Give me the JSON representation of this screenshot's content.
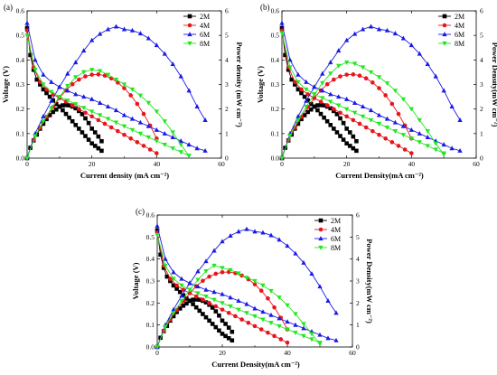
{
  "colors": {
    "2M": "#000000",
    "4M": "#e8151b",
    "6M": "#1a1ae6",
    "8M": "#22e61f"
  },
  "markers": {
    "2M": "square",
    "4M": "circle",
    "6M": "triangle-up",
    "8M": "triangle-down"
  },
  "chart_data": [
    {
      "type": "line",
      "panel": "(a)",
      "xlabel": "Current density",
      "xlabel_unit": "(mA cm⁻²)",
      "ylabel_left": "Voltage (V)",
      "ylabel_right": "Power density (mW cm⁻²)",
      "xlim": [
        0,
        60
      ],
      "xticks": [
        0,
        20,
        40,
        60
      ],
      "ylim_left": [
        0,
        0.6
      ],
      "yticks_left": [
        0.0,
        0.1,
        0.2,
        0.3,
        0.4,
        0.5,
        0.6
      ],
      "ylim_right": [
        0,
        6
      ],
      "yticks_right": [
        0,
        1,
        2,
        3,
        4,
        5,
        6
      ],
      "legend_position": "top-right",
      "series": [
        {
          "name": "2M",
          "x": [
            0,
            1,
            2,
            3,
            4,
            5,
            6,
            7,
            8,
            9,
            10,
            11,
            12,
            13,
            14,
            15,
            16,
            17,
            18,
            19,
            20,
            21,
            22,
            23
          ],
          "voltage": [
            0.53,
            0.42,
            0.36,
            0.32,
            0.3,
            0.28,
            0.265,
            0.25,
            0.235,
            0.22,
            0.21,
            0.195,
            0.18,
            0.165,
            0.15,
            0.135,
            0.12,
            0.105,
            0.09,
            0.075,
            0.06,
            0.05,
            0.04,
            0.03
          ],
          "power": [
            0,
            0.42,
            0.72,
            0.96,
            1.2,
            1.4,
            1.59,
            1.75,
            1.88,
            1.98,
            2.1,
            2.15,
            2.16,
            2.15,
            2.1,
            2.03,
            1.92,
            1.79,
            1.62,
            1.43,
            1.2,
            1.05,
            0.88,
            0.69
          ]
        },
        {
          "name": "4M",
          "x": [
            0,
            2,
            4,
            6,
            8,
            10,
            12,
            14,
            16,
            18,
            20,
            22,
            24,
            26,
            28,
            30,
            32,
            34,
            36,
            38,
            40
          ],
          "voltage": [
            0.52,
            0.37,
            0.31,
            0.28,
            0.26,
            0.245,
            0.23,
            0.215,
            0.2,
            0.185,
            0.17,
            0.155,
            0.14,
            0.125,
            0.11,
            0.095,
            0.08,
            0.065,
            0.05,
            0.035,
            0.02
          ],
          "power": [
            0,
            0.74,
            1.24,
            1.68,
            2.08,
            2.45,
            2.76,
            3.01,
            3.2,
            3.33,
            3.4,
            3.41,
            3.36,
            3.25,
            3.08,
            2.85,
            2.56,
            2.21,
            1.8,
            1.33,
            0.8
          ]
        },
        {
          "name": "6M",
          "x": [
            0,
            2.5,
            5,
            7.5,
            10,
            12.5,
            15,
            17.5,
            20,
            22.5,
            25,
            27.5,
            30,
            32.5,
            35,
            37.5,
            40,
            42.5,
            45,
            47.5,
            50,
            52.5,
            55
          ],
          "voltage": [
            0.55,
            0.4,
            0.34,
            0.31,
            0.29,
            0.275,
            0.26,
            0.25,
            0.24,
            0.225,
            0.21,
            0.195,
            0.175,
            0.16,
            0.145,
            0.13,
            0.115,
            0.1,
            0.085,
            0.07,
            0.055,
            0.04,
            0.03
          ],
          "power": [
            0,
            1.0,
            1.7,
            2.33,
            2.9,
            3.44,
            3.9,
            4.38,
            4.8,
            5.06,
            5.25,
            5.36,
            5.25,
            5.2,
            5.08,
            4.88,
            4.6,
            4.25,
            3.83,
            3.33,
            2.75,
            2.1,
            1.55
          ]
        },
        {
          "name": "8M",
          "x": [
            0,
            2.5,
            5,
            7.5,
            10,
            12.5,
            15,
            17.5,
            20,
            22.5,
            25,
            27.5,
            30,
            32.5,
            35,
            37.5,
            40,
            42.5,
            45,
            47.5,
            50
          ],
          "voltage": [
            0.5,
            0.36,
            0.3,
            0.27,
            0.25,
            0.235,
            0.22,
            0.205,
            0.19,
            0.175,
            0.16,
            0.145,
            0.13,
            0.115,
            0.1,
            0.085,
            0.07,
            0.055,
            0.04,
            0.025,
            0.01
          ],
          "power": [
            0,
            0.9,
            1.5,
            2.03,
            2.5,
            2.94,
            3.3,
            3.51,
            3.6,
            3.55,
            3.4,
            3.2,
            3.0,
            2.8,
            2.55,
            2.25,
            1.9,
            1.5,
            1.05,
            0.55,
            0.1
          ]
        }
      ]
    },
    {
      "type": "line",
      "panel": "(b)",
      "xlabel": "Current Density",
      "xlabel_unit": "(mA cm⁻²)",
      "ylabel_left": "Voltage (V)",
      "ylabel_right": "Power Density(mW cm⁻²)",
      "xlim": [
        0,
        60
      ],
      "xticks": [
        0,
        20,
        40,
        60
      ],
      "ylim_left": [
        0,
        0.6
      ],
      "yticks_left": [
        0.0,
        0.1,
        0.2,
        0.3,
        0.4,
        0.5,
        0.6
      ],
      "ylim_right": [
        0,
        6
      ],
      "yticks_right": [
        0,
        1,
        2,
        3,
        4,
        5,
        6
      ],
      "legend_position": "top-right",
      "series": [
        {
          "name": "2M",
          "x": [
            0,
            1,
            2,
            3,
            4,
            5,
            6,
            7,
            8,
            9,
            10,
            11,
            12,
            13,
            14,
            15,
            16,
            17,
            18,
            19,
            20,
            21,
            22,
            23
          ],
          "voltage": [
            0.53,
            0.42,
            0.36,
            0.32,
            0.3,
            0.28,
            0.265,
            0.25,
            0.235,
            0.22,
            0.21,
            0.195,
            0.18,
            0.165,
            0.15,
            0.135,
            0.12,
            0.105,
            0.09,
            0.075,
            0.06,
            0.05,
            0.04,
            0.03
          ],
          "power": [
            0,
            0.42,
            0.72,
            0.96,
            1.2,
            1.4,
            1.59,
            1.75,
            1.88,
            1.98,
            2.1,
            2.15,
            2.16,
            2.15,
            2.1,
            2.03,
            1.92,
            1.79,
            1.62,
            1.43,
            1.2,
            1.05,
            0.88,
            0.69
          ]
        },
        {
          "name": "4M",
          "x": [
            0,
            2,
            4,
            6,
            8,
            10,
            12,
            14,
            16,
            18,
            20,
            22,
            24,
            26,
            28,
            30,
            32,
            34,
            36,
            38,
            40
          ],
          "voltage": [
            0.52,
            0.37,
            0.31,
            0.28,
            0.26,
            0.245,
            0.23,
            0.215,
            0.2,
            0.185,
            0.17,
            0.155,
            0.14,
            0.125,
            0.11,
            0.095,
            0.08,
            0.065,
            0.05,
            0.035,
            0.02
          ],
          "power": [
            0,
            0.74,
            1.24,
            1.68,
            2.08,
            2.45,
            2.76,
            3.01,
            3.2,
            3.33,
            3.4,
            3.41,
            3.36,
            3.25,
            3.08,
            2.85,
            2.56,
            2.21,
            1.8,
            1.33,
            0.8
          ]
        },
        {
          "name": "6M",
          "x": [
            0,
            2.5,
            5,
            7.5,
            10,
            12.5,
            15,
            17.5,
            20,
            22.5,
            25,
            27.5,
            30,
            32.5,
            35,
            37.5,
            40,
            42.5,
            45,
            47.5,
            50,
            52.5,
            55
          ],
          "voltage": [
            0.55,
            0.4,
            0.34,
            0.31,
            0.29,
            0.275,
            0.26,
            0.25,
            0.24,
            0.225,
            0.21,
            0.195,
            0.175,
            0.16,
            0.145,
            0.13,
            0.115,
            0.1,
            0.085,
            0.07,
            0.055,
            0.04,
            0.03
          ],
          "power": [
            0,
            1.0,
            1.7,
            2.33,
            2.9,
            3.44,
            3.9,
            4.38,
            4.8,
            5.06,
            5.25,
            5.36,
            5.25,
            5.2,
            5.08,
            4.88,
            4.6,
            4.25,
            3.83,
            3.33,
            2.75,
            2.1,
            1.55
          ]
        },
        {
          "name": "8M",
          "x": [
            0,
            2.5,
            5,
            7.5,
            10,
            12.5,
            15,
            17.5,
            20,
            22.5,
            25,
            27.5,
            30,
            32.5,
            35,
            37.5,
            40,
            42.5,
            45,
            47.5,
            50
          ],
          "voltage": [
            0.51,
            0.37,
            0.31,
            0.28,
            0.26,
            0.245,
            0.23,
            0.215,
            0.2,
            0.185,
            0.17,
            0.155,
            0.14,
            0.125,
            0.11,
            0.095,
            0.08,
            0.065,
            0.05,
            0.035,
            0.02
          ],
          "power": [
            0,
            0.92,
            1.55,
            2.1,
            2.6,
            3.06,
            3.45,
            3.76,
            3.9,
            3.85,
            3.7,
            3.5,
            3.3,
            3.05,
            2.75,
            2.4,
            2.0,
            1.55,
            1.1,
            0.6,
            0.15
          ]
        }
      ]
    },
    {
      "type": "line",
      "panel": "(c)",
      "xlabel": "Current Density",
      "xlabel_unit": "(mA cm⁻²)",
      "ylabel_left": "Voltage (V)",
      "ylabel_right": "Power Density(mW cm⁻²)",
      "xlim": [
        0,
        60
      ],
      "xticks": [
        0,
        20,
        40,
        60
      ],
      "ylim_left": [
        0,
        0.6
      ],
      "yticks_left": [
        0.0,
        0.1,
        0.2,
        0.3,
        0.4,
        0.5,
        0.6
      ],
      "ylim_right": [
        0,
        6
      ],
      "yticks_right": [
        0,
        1,
        2,
        3,
        4,
        5,
        6
      ],
      "legend_position": "top-right",
      "series": [
        {
          "name": "2M",
          "x": [
            0,
            1,
            2,
            3,
            4,
            5,
            6,
            7,
            8,
            9,
            10,
            11,
            12,
            13,
            14,
            15,
            16,
            17,
            18,
            19,
            20,
            21,
            22,
            23
          ],
          "voltage": [
            0.53,
            0.42,
            0.36,
            0.32,
            0.3,
            0.28,
            0.265,
            0.25,
            0.235,
            0.22,
            0.21,
            0.195,
            0.18,
            0.165,
            0.15,
            0.135,
            0.12,
            0.105,
            0.09,
            0.075,
            0.06,
            0.05,
            0.04,
            0.03
          ],
          "power": [
            0,
            0.42,
            0.72,
            0.96,
            1.2,
            1.4,
            1.59,
            1.75,
            1.88,
            1.98,
            2.1,
            2.15,
            2.16,
            2.15,
            2.1,
            2.03,
            1.92,
            1.79,
            1.62,
            1.43,
            1.2,
            1.05,
            0.88,
            0.69
          ]
        },
        {
          "name": "4M",
          "x": [
            0,
            2,
            4,
            6,
            8,
            10,
            12,
            14,
            16,
            18,
            20,
            22,
            24,
            26,
            28,
            30,
            32,
            34,
            36,
            38,
            40
          ],
          "voltage": [
            0.52,
            0.37,
            0.31,
            0.28,
            0.26,
            0.245,
            0.23,
            0.215,
            0.2,
            0.185,
            0.17,
            0.155,
            0.14,
            0.125,
            0.11,
            0.095,
            0.08,
            0.065,
            0.05,
            0.035,
            0.02
          ],
          "power": [
            0,
            0.74,
            1.24,
            1.68,
            2.08,
            2.45,
            2.76,
            3.01,
            3.2,
            3.33,
            3.4,
            3.41,
            3.36,
            3.25,
            3.08,
            2.85,
            2.56,
            2.21,
            1.8,
            1.33,
            0.8
          ]
        },
        {
          "name": "6M",
          "x": [
            0,
            2.5,
            5,
            7.5,
            10,
            12.5,
            15,
            17.5,
            20,
            22.5,
            25,
            27.5,
            30,
            32.5,
            35,
            37.5,
            40,
            42.5,
            45,
            47.5,
            50,
            52.5,
            55
          ],
          "voltage": [
            0.55,
            0.4,
            0.34,
            0.31,
            0.29,
            0.275,
            0.26,
            0.25,
            0.24,
            0.225,
            0.21,
            0.195,
            0.175,
            0.16,
            0.145,
            0.13,
            0.115,
            0.1,
            0.085,
            0.07,
            0.055,
            0.04,
            0.03
          ],
          "power": [
            0,
            1.0,
            1.7,
            2.33,
            2.9,
            3.44,
            3.9,
            4.38,
            4.8,
            5.06,
            5.25,
            5.36,
            5.25,
            5.2,
            5.08,
            4.88,
            4.6,
            4.25,
            3.83,
            3.33,
            2.75,
            2.1,
            1.55
          ]
        },
        {
          "name": "8M",
          "x": [
            0,
            2.5,
            5,
            7.5,
            10,
            12.5,
            15,
            17.5,
            20,
            22.5,
            25,
            27.5,
            30,
            32.5,
            35,
            37.5,
            40,
            42.5,
            45,
            47.5,
            50
          ],
          "voltage": [
            0.51,
            0.37,
            0.31,
            0.28,
            0.26,
            0.245,
            0.23,
            0.215,
            0.2,
            0.185,
            0.17,
            0.155,
            0.14,
            0.125,
            0.11,
            0.095,
            0.08,
            0.065,
            0.05,
            0.035,
            0.02
          ],
          "power": [
            0,
            0.92,
            1.55,
            2.1,
            2.6,
            3.06,
            3.45,
            3.7,
            3.6,
            3.5,
            3.35,
            3.15,
            3.0,
            2.8,
            2.55,
            2.25,
            1.9,
            1.5,
            1.05,
            0.6,
            0.15
          ]
        }
      ]
    }
  ]
}
